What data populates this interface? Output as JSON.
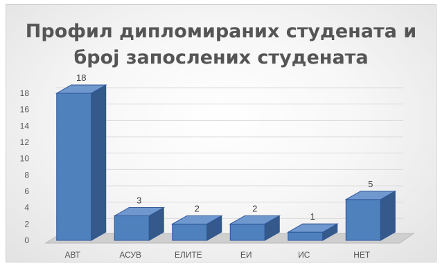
{
  "chart_data": {
    "type": "bar",
    "title": "Профил дипломираних студената и број запослених студената",
    "title_lines": [
      "Профил дипломираних студената и",
      "број запослених студената"
    ],
    "categories": [
      "АВТ",
      "АСУВ",
      "ЕЛИТЕ",
      "ЕИ",
      "ИС",
      "НЕТ"
    ],
    "values": [
      18,
      3,
      2,
      2,
      1,
      5
    ],
    "data_labels": [
      "18",
      "3",
      "2",
      "2",
      "1",
      "5"
    ],
    "ylim": [
      0,
      18
    ],
    "y_ticks": [
      "0",
      "2",
      "4",
      "6",
      "8",
      "10",
      "12",
      "14",
      "16",
      "18"
    ],
    "xlabel": "",
    "ylabel": "",
    "grid": true,
    "style": "3d-column",
    "bar_color": "#4f81bd"
  }
}
